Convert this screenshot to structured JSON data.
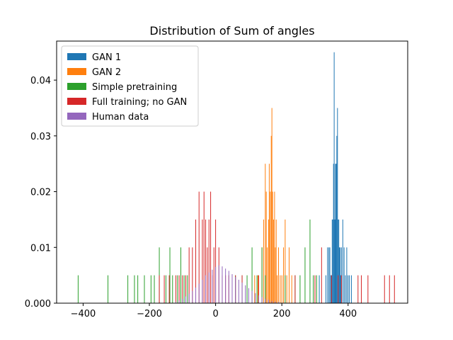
{
  "chart_data": {
    "type": "bar",
    "title": "Distribution of Sum of angles",
    "xlabel": "",
    "ylabel": "",
    "xlim": [
      -480,
      580
    ],
    "ylim": [
      0,
      0.047
    ],
    "xticks": [
      -400,
      -200,
      0,
      200,
      400
    ],
    "yticks": [
      0.0,
      0.01,
      0.02,
      0.03,
      0.04
    ],
    "xtick_labels": [
      "−400",
      "−200",
      "0",
      "200",
      "400"
    ],
    "ytick_labels": [
      "0.000",
      "0.01",
      "0.02",
      "0.03",
      "0.04"
    ],
    "grid": false,
    "legend_position": "top-left",
    "bar_width": 2,
    "series": [
      {
        "name": "GAN 1",
        "color": "#1f77b4",
        "x": [
          313,
          333,
          338,
          342,
          345,
          348,
          350,
          352,
          354,
          356,
          358,
          360,
          362,
          364,
          366,
          368,
          370,
          372,
          374,
          376,
          378,
          380,
          384,
          388,
          392,
          396,
          400,
          404,
          410
        ],
        "values": [
          0.005,
          0.005,
          0.01,
          0.01,
          0.01,
          0.005,
          0.005,
          0.015,
          0.015,
          0.025,
          0.045,
          0.015,
          0.025,
          0.025,
          0.03,
          0.035,
          0.015,
          0.015,
          0.01,
          0.01,
          0.005,
          0.01,
          0.015,
          0.01,
          0.005,
          0.01,
          0.005,
          0.005,
          0.005
        ]
      },
      {
        "name": "GAN 2",
        "color": "#ff7f0e",
        "x": [
          118,
          128,
          140,
          145,
          150,
          153,
          156,
          160,
          162,
          165,
          168,
          170,
          172,
          175,
          178,
          180,
          183,
          186,
          190,
          195,
          200,
          205,
          210,
          215,
          222,
          230
        ],
        "values": [
          0.005,
          0.005,
          0.01,
          0.015,
          0.025,
          0.02,
          0.01,
          0.015,
          0.025,
          0.02,
          0.03,
          0.035,
          0.02,
          0.015,
          0.02,
          0.01,
          0.015,
          0.005,
          0.01,
          0.005,
          0.005,
          0.01,
          0.015,
          0.005,
          0.01,
          0.005
        ]
      },
      {
        "name": "Simple pretraining",
        "color": "#2ca02c",
        "x": [
          -415,
          -325,
          -265,
          -245,
          -235,
          -215,
          -195,
          -185,
          -170,
          -150,
          -138,
          -130,
          -115,
          -105,
          -95,
          -85,
          60,
          80,
          95,
          110,
          125,
          140,
          150,
          210,
          240,
          255,
          270,
          285,
          295,
          305
        ],
        "values": [
          0.005,
          0.005,
          0.005,
          0.005,
          0.005,
          0.005,
          0.005,
          0.005,
          0.01,
          0.005,
          0.01,
          0.005,
          0.005,
          0.01,
          0.005,
          0.005,
          0.005,
          0.005,
          0.005,
          0.01,
          0.005,
          0.01,
          0.005,
          0.005,
          0.005,
          0.005,
          0.01,
          0.015,
          0.005,
          0.005
        ]
      },
      {
        "name": "Full training; no GAN",
        "color": "#d62728",
        "x": [
          -170,
          -155,
          -140,
          -120,
          -110,
          -100,
          -90,
          -80,
          -70,
          -60,
          -50,
          -40,
          -35,
          -30,
          -25,
          -20,
          -15,
          -10,
          -5,
          0,
          10,
          20,
          30,
          40,
          60,
          80,
          130,
          240,
          300,
          320,
          350,
          370,
          380,
          430,
          440,
          460,
          510,
          525,
          540
        ],
        "values": [
          0.005,
          0.005,
          0.005,
          0.005,
          0.005,
          0.005,
          0.005,
          0.01,
          0.01,
          0.015,
          0.02,
          0.015,
          0.02,
          0.015,
          0.01,
          0.015,
          0.02,
          0.005,
          0.01,
          0.015,
          0.01,
          0.005,
          0.005,
          0.005,
          0.005,
          0.005,
          0.005,
          0.005,
          0.005,
          0.01,
          0.005,
          0.005,
          0.005,
          0.005,
          0.005,
          0.005,
          0.005,
          0.005,
          0.005
        ]
      },
      {
        "name": "Human data",
        "color": "#9467bd",
        "x": [
          -120,
          -110,
          -100,
          -90,
          -80,
          -70,
          -60,
          -50,
          -40,
          -30,
          -20,
          -10,
          0,
          10,
          20,
          30,
          40,
          50,
          60,
          70,
          80,
          90,
          100,
          110,
          120,
          130,
          140,
          150,
          160,
          170,
          180,
          190
        ],
        "values": [
          0.0002,
          0.0005,
          0.0008,
          0.0012,
          0.0017,
          0.0022,
          0.0028,
          0.0035,
          0.0042,
          0.005,
          0.0055,
          0.006,
          0.0065,
          0.0068,
          0.0066,
          0.0062,
          0.0058,
          0.0052,
          0.0047,
          0.0042,
          0.0037,
          0.0032,
          0.0027,
          0.0022,
          0.0018,
          0.0014,
          0.0011,
          0.0008,
          0.0006,
          0.0004,
          0.0003,
          0.0002
        ]
      }
    ]
  }
}
